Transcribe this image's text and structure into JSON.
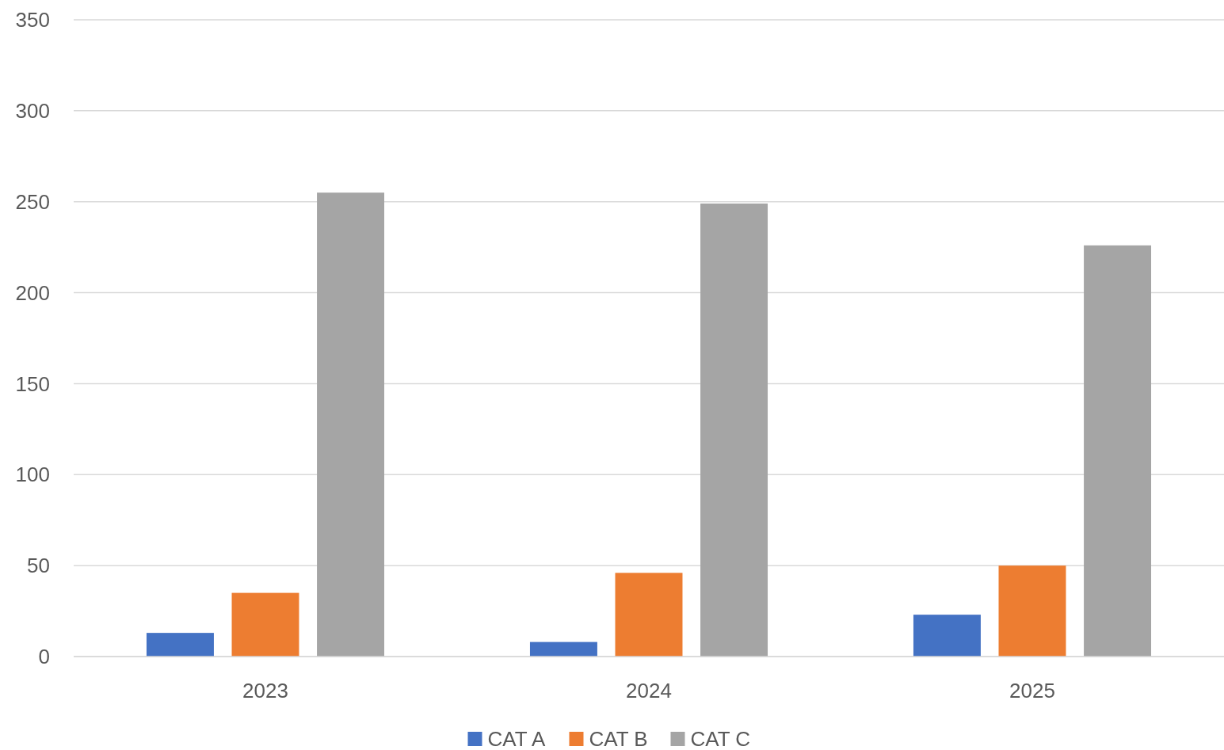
{
  "chart_data": {
    "type": "bar",
    "categories": [
      "2023",
      "2024",
      "2025"
    ],
    "series": [
      {
        "name": "CAT A",
        "color": "#4472c4",
        "values": [
          13,
          8,
          23
        ]
      },
      {
        "name": "CAT B",
        "color": "#ed7d31",
        "values": [
          35,
          46,
          50
        ]
      },
      {
        "name": "CAT C",
        "color": "#a5a5a5",
        "values": [
          255,
          249,
          226
        ]
      }
    ],
    "ylim": [
      0,
      350
    ],
    "yticks": [
      0,
      50,
      100,
      150,
      200,
      250,
      300,
      350
    ],
    "grid": "y",
    "legend": "bottom"
  }
}
